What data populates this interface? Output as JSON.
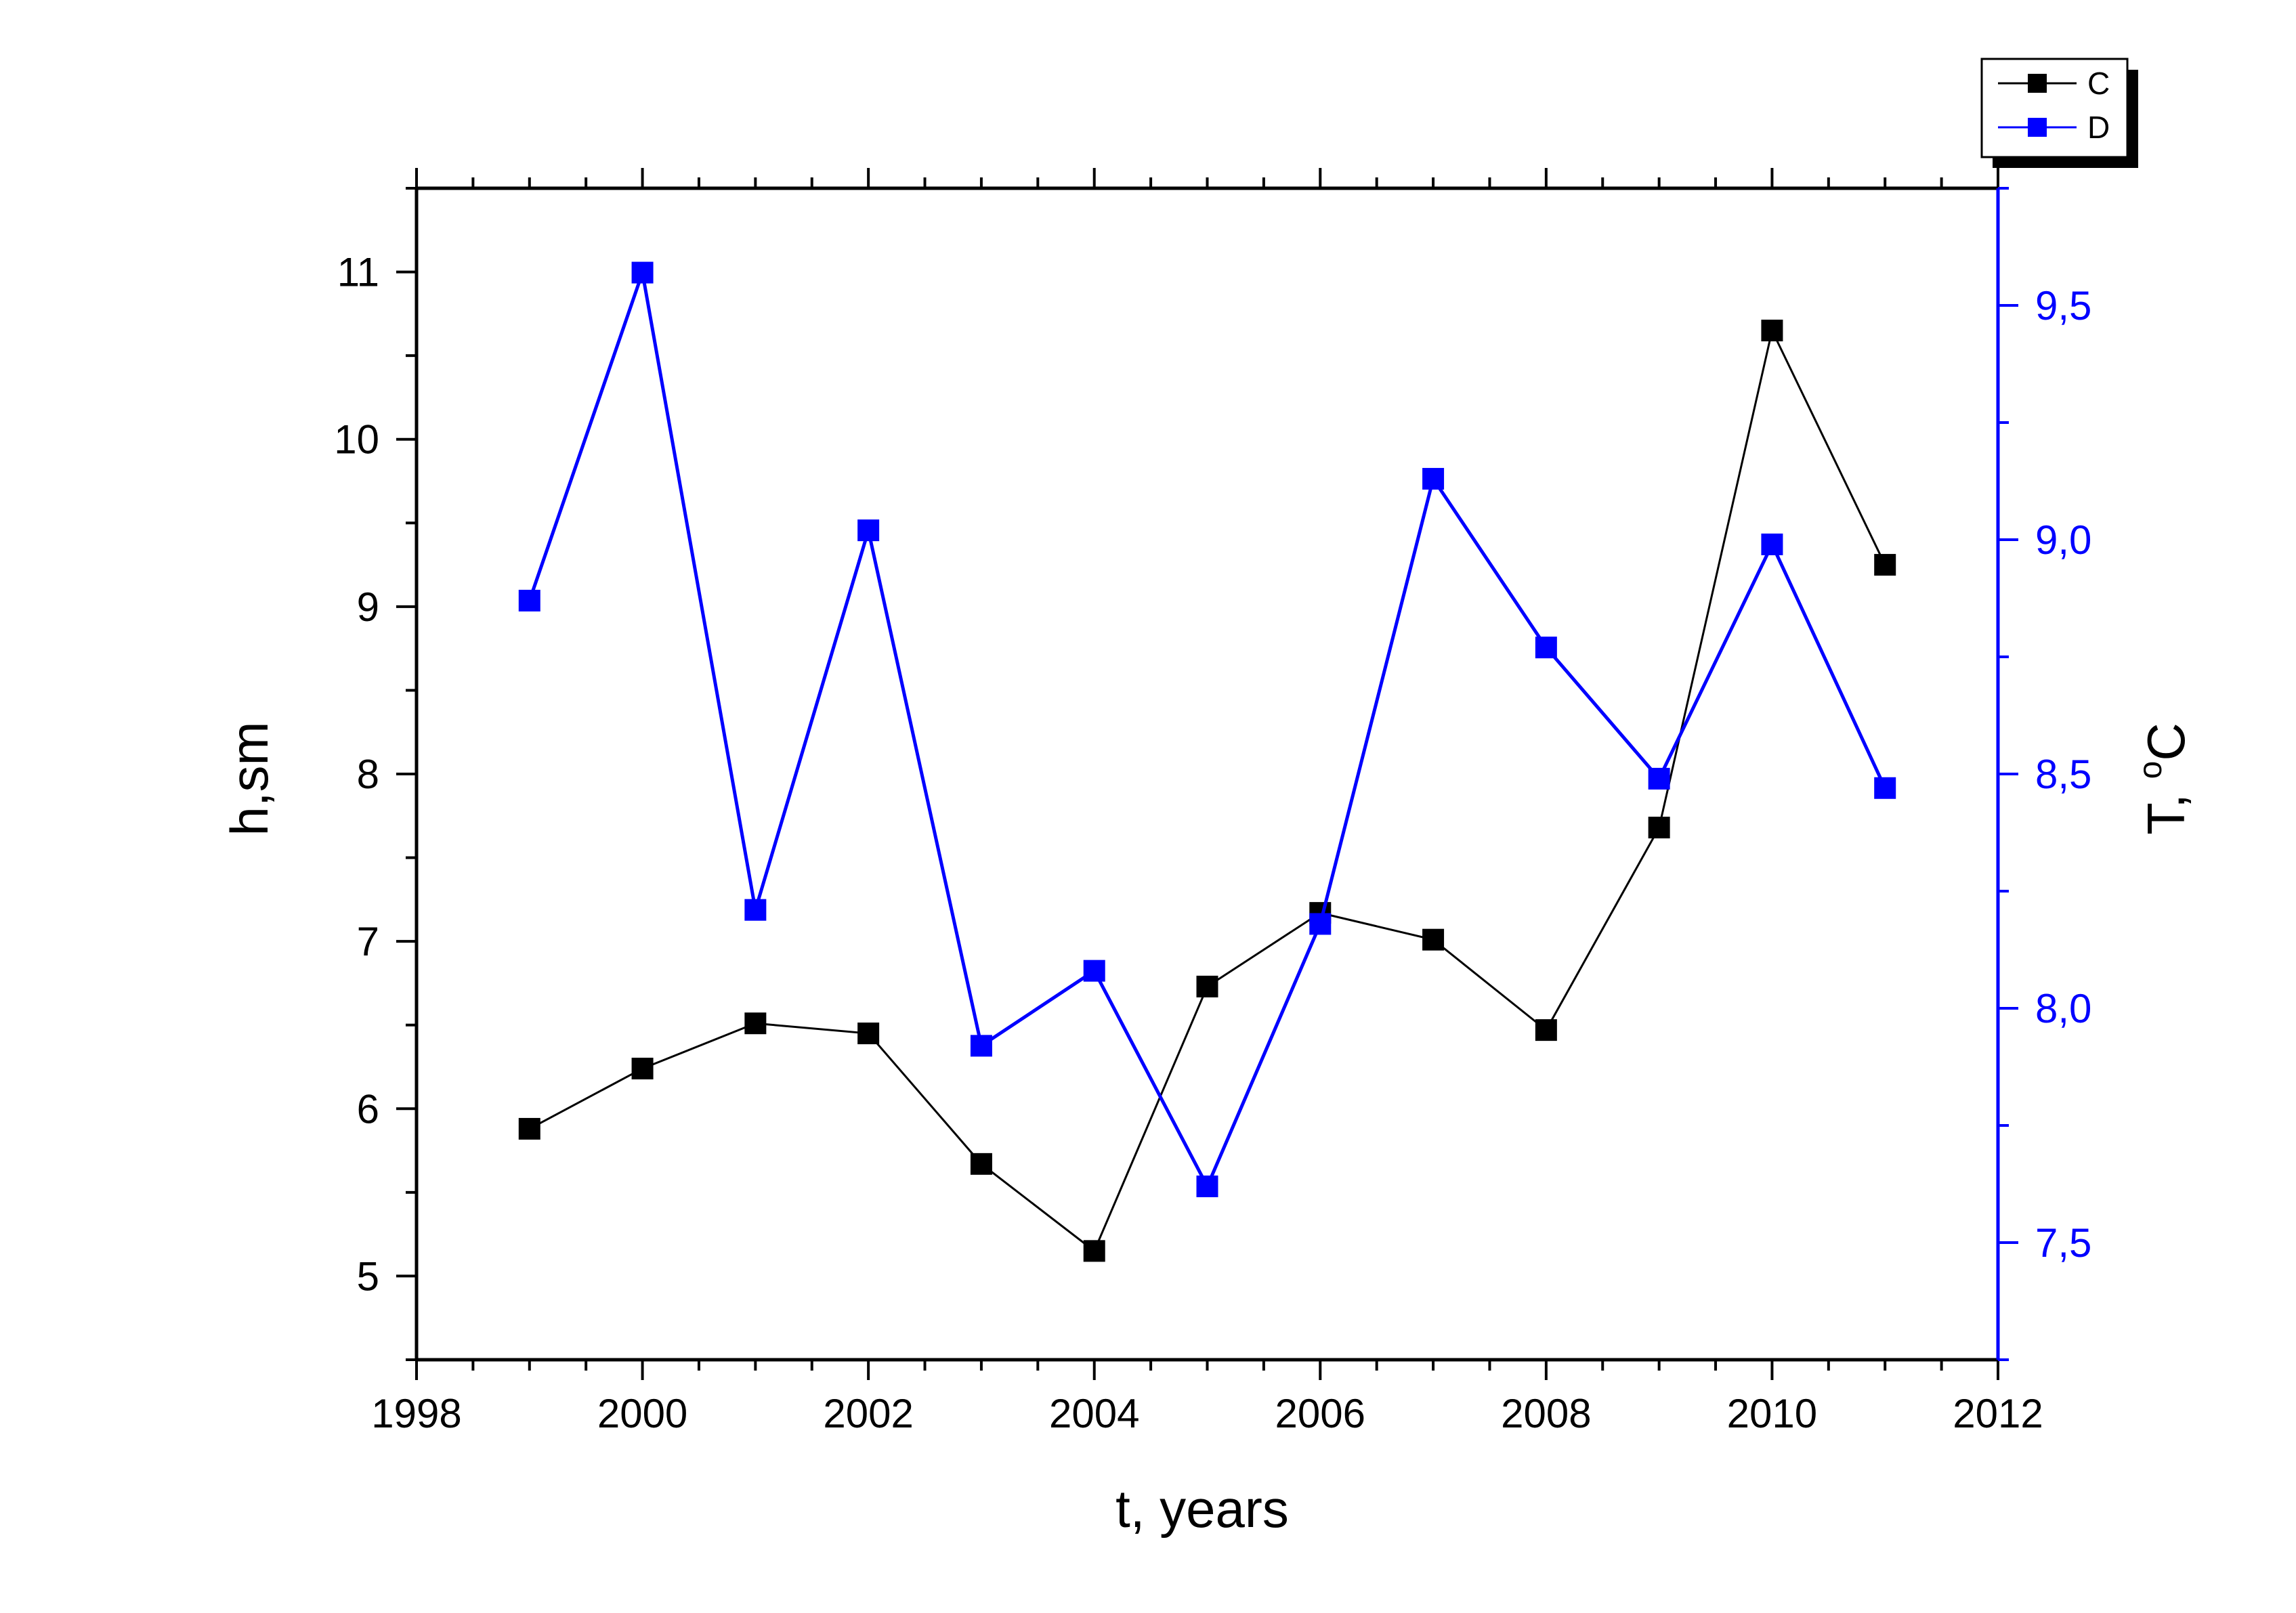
{
  "chart_data": {
    "type": "line",
    "x_axis": {
      "label": "t, years",
      "range": [
        1998,
        2012
      ],
      "ticks": [
        1998,
        2000,
        2002,
        2004,
        2006,
        2008,
        2010,
        2012
      ]
    },
    "y_axis_left": {
      "label": "h,sm",
      "range": [
        4.5,
        11.5
      ],
      "ticks": [
        5,
        6,
        7,
        8,
        9,
        10,
        11
      ],
      "tick_labels": [
        "5",
        "6",
        "7",
        "8",
        "9",
        "10",
        "11"
      ]
    },
    "y_axis_right": {
      "label_main": "T, ",
      "label_sup": "o",
      "label_unit": "C",
      "range": [
        7.25,
        9.75
      ],
      "ticks": [
        7.5,
        8.0,
        8.5,
        9.0,
        9.5
      ],
      "tick_labels": [
        "7,5",
        "8,0",
        "8,5",
        "9,0",
        "9,5"
      ],
      "color": "#0000ff"
    },
    "x": [
      1999,
      2000,
      2001,
      2002,
      2003,
      2004,
      2005,
      2006,
      2007,
      2008,
      2009,
      2010,
      2011
    ],
    "series": [
      {
        "name": "C",
        "axis": "left",
        "color": "#000000",
        "values": [
          5.88,
          6.24,
          6.51,
          6.45,
          5.67,
          5.15,
          6.73,
          7.17,
          7.01,
          6.47,
          7.68,
          10.65,
          9.25
        ]
      },
      {
        "name": "D",
        "axis": "right",
        "color": "#0000ff",
        "values": [
          8.87,
          9.57,
          8.21,
          9.02,
          7.92,
          8.08,
          7.62,
          8.18,
          9.13,
          8.77,
          8.49,
          8.99,
          8.47
        ]
      }
    ],
    "legend": {
      "position": "top-right",
      "entries": [
        "C",
        "D"
      ]
    },
    "grid": false
  }
}
